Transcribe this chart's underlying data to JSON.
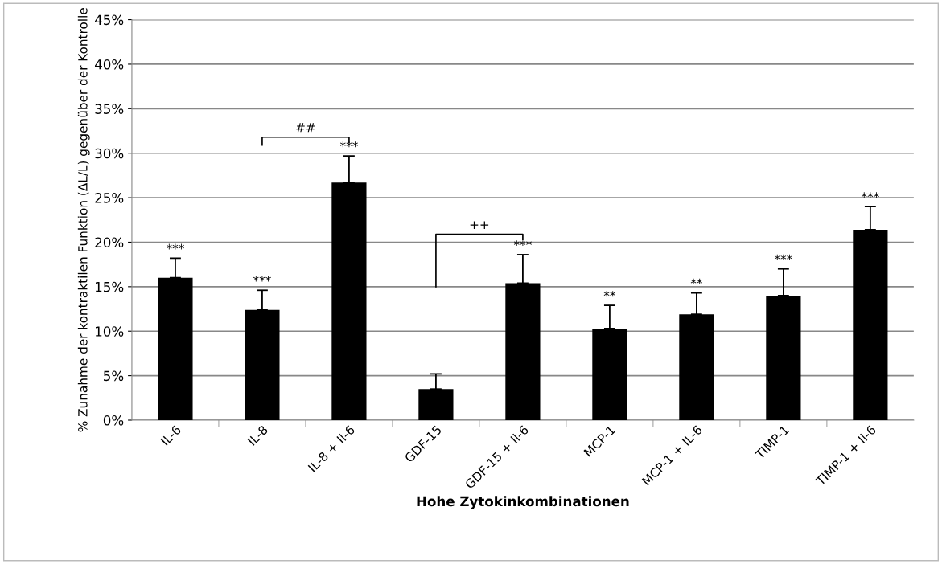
{
  "chart_data": {
    "type": "bar",
    "categories": [
      "IL-6",
      "IL-8",
      "IL-8 + Il-6",
      "GDF-15",
      "GDF-15 + Il-6",
      "MCP-1",
      "MCP-1 + IL-6",
      "TIMP-1",
      "TIMP-1 + Il-6"
    ],
    "values": [
      16.0,
      12.4,
      26.7,
      3.5,
      15.4,
      10.3,
      11.9,
      14.0,
      21.4
    ],
    "errors": [
      [
        16.0,
        18.2
      ],
      [
        12.4,
        14.6
      ],
      [
        26.7,
        29.7
      ],
      [
        3.5,
        5.2
      ],
      [
        15.4,
        18.6
      ],
      [
        10.3,
        12.9
      ],
      [
        11.9,
        14.3
      ],
      [
        14.0,
        17.0
      ],
      [
        21.4,
        24.0
      ]
    ],
    "color": "#000000",
    "xlabel": "Hohe Zytokinkombinationen",
    "ylabel": "% Zunahme der kontraktilen Funktion (ΔL/L) gegenüber der Kontrolle",
    "ylim": [
      0,
      45
    ],
    "yticks": [
      {
        "value": 0,
        "label": "0%"
      },
      {
        "value": 5,
        "label": "5%"
      },
      {
        "value": 10,
        "label": "10%"
      },
      {
        "value": 15,
        "label": "15%"
      },
      {
        "value": 20,
        "label": "20%"
      },
      {
        "value": 25,
        "label": "25%"
      },
      {
        "value": 30,
        "label": "30%"
      },
      {
        "value": 35,
        "label": "35%"
      },
      {
        "value": 40,
        "label": "40%"
      },
      {
        "value": 45,
        "label": "45%"
      }
    ],
    "grid": "y",
    "legend": false,
    "annotations": [
      {
        "text": "***",
        "x": "IL-6",
        "y": 18.2
      },
      {
        "text": "***",
        "x": "IL-8",
        "y": 14.6
      },
      {
        "text": "***",
        "x": "IL-8 + Il-6",
        "y": 29.7
      },
      {
        "text": "***",
        "x": "GDF-15 + Il-6",
        "y": 18.6
      },
      {
        "text": "**",
        "x": "MCP-1",
        "y": 12.9
      },
      {
        "text": "**",
        "x": "MCP-1 + IL-6",
        "y": 14.3
      },
      {
        "text": "***",
        "x": "TIMP-1",
        "y": 17.0
      },
      {
        "text": "***",
        "x": "TIMP-1 + Il-6",
        "y": 24.0
      },
      "##",
      "++"
    ]
  }
}
